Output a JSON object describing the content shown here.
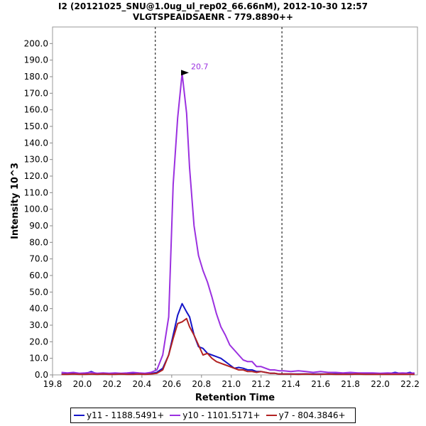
{
  "header": {
    "title_line1": "I2 (20121025_SNU@1.0ug_ul_rep02_66.66nM), 2012-10-30 12:57",
    "title_line2": "VLGTSPEAIDSAENR - 779.8890++"
  },
  "chart_data": {
    "type": "line",
    "xlabel": "Retention Time",
    "ylabel": "Intensity 10^3",
    "xlim": [
      19.8,
      22.25
    ],
    "ylim": [
      0,
      210
    ],
    "xticks": [
      "19.8",
      "20.0",
      "20.2",
      "20.4",
      "20.6",
      "20.8",
      "21.0",
      "21.2",
      "21.4",
      "21.6",
      "21.8",
      "22.0",
      "22.2"
    ],
    "yticks": [
      "0.0",
      "10.0",
      "20.0",
      "30.0",
      "40.0",
      "50.0",
      "60.0",
      "70.0",
      "80.0",
      "90.0",
      "100.0",
      "110.0",
      "120.0",
      "130.0",
      "140.0",
      "150.0",
      "160.0",
      "170.0",
      "180.0",
      "190.0",
      "200.0"
    ],
    "boundaries": [
      20.49,
      21.34
    ],
    "peak_label": {
      "text": "20.7",
      "x": 20.72,
      "y": 182
    },
    "legend_position": "bottom",
    "series": [
      {
        "name": "y11 - 1188.5491+",
        "color": "#1414c8",
        "x": [
          19.86,
          19.9,
          19.94,
          19.98,
          20.02,
          20.06,
          20.1,
          20.14,
          20.18,
          20.22,
          20.26,
          20.3,
          20.34,
          20.38,
          20.42,
          20.46,
          20.5,
          20.54,
          20.58,
          20.61,
          20.64,
          20.67,
          20.7,
          20.72,
          20.75,
          20.78,
          20.81,
          20.84,
          20.87,
          20.9,
          20.93,
          20.96,
          20.99,
          21.02,
          21.05,
          21.08,
          21.11,
          21.14,
          21.17,
          21.2,
          21.23,
          21.26,
          21.29,
          21.32,
          21.35,
          21.4,
          21.45,
          21.5,
          21.55,
          21.6,
          21.65,
          21.7,
          21.75,
          21.8,
          21.85,
          21.9,
          21.95,
          22.0,
          22.05,
          22.1,
          22.15,
          22.2,
          22.23
        ],
        "y": [
          0.5,
          0.5,
          0.8,
          0.5,
          0.6,
          2.0,
          0.5,
          0.5,
          0.6,
          0.5,
          0.5,
          0.5,
          0.8,
          0.5,
          0.6,
          0.8,
          1.5,
          4,
          12,
          24,
          36,
          43,
          38,
          35,
          24,
          17,
          16,
          13,
          12,
          11,
          10,
          8,
          6,
          4,
          4.5,
          4,
          3,
          3,
          2,
          2,
          1.5,
          1,
          1,
          0.5,
          0.5,
          0.5,
          0.5,
          0.6,
          0.5,
          0.5,
          0.5,
          0.6,
          0.5,
          0.5,
          0.5,
          0.5,
          0.5,
          0.5,
          0.6,
          1.5,
          0.6,
          1.5,
          0.5
        ]
      },
      {
        "name": "y10 - 1101.5171+",
        "color": "#9b30e0",
        "x": [
          19.86,
          19.9,
          19.94,
          19.98,
          20.02,
          20.06,
          20.1,
          20.14,
          20.18,
          20.22,
          20.26,
          20.3,
          20.34,
          20.38,
          20.42,
          20.46,
          20.5,
          20.54,
          20.58,
          20.61,
          20.64,
          20.67,
          20.7,
          20.72,
          20.75,
          20.78,
          20.81,
          20.84,
          20.87,
          20.9,
          20.93,
          20.96,
          20.99,
          21.02,
          21.05,
          21.08,
          21.11,
          21.14,
          21.17,
          21.2,
          21.23,
          21.26,
          21.29,
          21.32,
          21.35,
          21.4,
          21.45,
          21.5,
          21.55,
          21.6,
          21.65,
          21.7,
          21.75,
          21.8,
          21.85,
          21.9,
          21.95,
          22.0,
          22.05,
          22.1,
          22.15,
          22.2,
          22.23
        ],
        "y": [
          1.5,
          1.2,
          1.5,
          1.0,
          1.2,
          1.5,
          1.0,
          1.2,
          1.0,
          1.2,
          1.0,
          1.2,
          1.5,
          1.2,
          1.0,
          1.5,
          3,
          12,
          35,
          115,
          155,
          182,
          158,
          125,
          90,
          72,
          63,
          56,
          47,
          37,
          29,
          24,
          18,
          15,
          12,
          9,
          8,
          8,
          5,
          5,
          4,
          3,
          3,
          2.5,
          2.5,
          2,
          2.5,
          2,
          1.5,
          2,
          1.5,
          1.5,
          1.2,
          1.5,
          1.2,
          1.2,
          1.2,
          1.0,
          1.2,
          1.0,
          1.2,
          1.0,
          1.2
        ]
      },
      {
        "name": "y7 - 804.3846+",
        "color": "#b22222",
        "x": [
          19.86,
          19.9,
          19.94,
          19.98,
          20.02,
          20.06,
          20.1,
          20.14,
          20.18,
          20.22,
          20.26,
          20.3,
          20.34,
          20.38,
          20.42,
          20.46,
          20.5,
          20.54,
          20.58,
          20.61,
          20.64,
          20.67,
          20.7,
          20.72,
          20.75,
          20.78,
          20.81,
          20.84,
          20.87,
          20.9,
          20.93,
          20.96,
          20.99,
          21.02,
          21.05,
          21.08,
          21.11,
          21.14,
          21.17,
          21.2,
          21.23,
          21.26,
          21.29,
          21.32,
          21.35,
          21.4,
          21.45,
          21.5,
          21.55,
          21.6,
          21.65,
          21.7,
          21.75,
          21.8,
          21.85,
          21.9,
          21.95,
          22.0,
          22.05,
          22.1,
          22.15,
          22.2,
          22.23
        ],
        "y": [
          0.3,
          0.3,
          0.5,
          0.3,
          0.3,
          0.5,
          0.3,
          0.5,
          0.3,
          0.3,
          0.5,
          0.3,
          0.3,
          0.5,
          0.3,
          0.5,
          1,
          3,
          12,
          22,
          31,
          32,
          34,
          29,
          24,
          18,
          12,
          13,
          10,
          8,
          7,
          6,
          5,
          4,
          3,
          3,
          2,
          2,
          1.5,
          2,
          1.5,
          1,
          1,
          0.5,
          0.5,
          0.5,
          0.3,
          0.5,
          0.3,
          0.3,
          0.5,
          0.3,
          0.3,
          0.3,
          0.5,
          0.3,
          0.3,
          0.3,
          0.3,
          0.3,
          0.3,
          0.3,
          0.3
        ]
      }
    ]
  }
}
